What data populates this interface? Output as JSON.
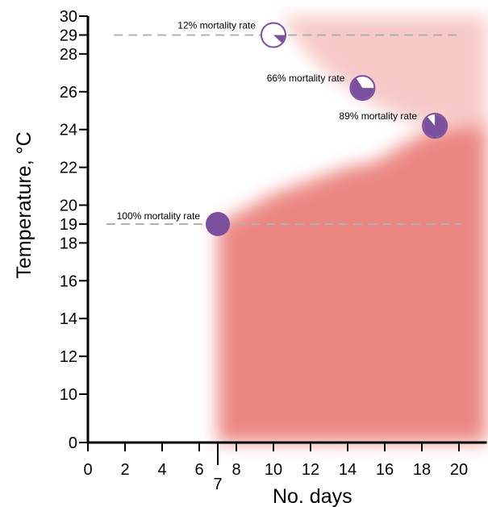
{
  "chart_data": {
    "type": "scatter",
    "xlabel": "No. days",
    "ylabel": "Temperature, °C",
    "xlim": [
      0,
      21.5
    ],
    "x_ticks": [
      {
        "value": 0,
        "label": "0"
      },
      {
        "value": 2,
        "label": "2"
      },
      {
        "value": 4,
        "label": "4"
      },
      {
        "value": 6,
        "label": "6"
      },
      {
        "value": 8,
        "label": "8"
      },
      {
        "value": 10,
        "label": "10"
      },
      {
        "value": 12,
        "label": "12"
      },
      {
        "value": 14,
        "label": "14"
      },
      {
        "value": 16,
        "label": "16"
      },
      {
        "value": 18,
        "label": "18"
      },
      {
        "value": 20,
        "label": "20"
      }
    ],
    "x_extra_tick": {
      "value": 7,
      "label": "7"
    },
    "y_ticks": [
      {
        "value": 0,
        "label": "0"
      },
      {
        "value": 10,
        "label": "10"
      },
      {
        "value": 12,
        "label": "12"
      },
      {
        "value": 14,
        "label": "14"
      },
      {
        "value": 16,
        "label": "16"
      },
      {
        "value": 18,
        "label": "18"
      },
      {
        "value": 19,
        "label": "19"
      },
      {
        "value": 20,
        "label": "20"
      },
      {
        "value": 22,
        "label": "22"
      },
      {
        "value": 24,
        "label": "24"
      },
      {
        "value": 26,
        "label": "26"
      },
      {
        "value": 28,
        "label": "28"
      },
      {
        "value": 29,
        "label": "29"
      },
      {
        "value": 30,
        "label": "30"
      }
    ],
    "reference_lines": [
      {
        "y": 29
      },
      {
        "y": 19
      }
    ],
    "points": [
      {
        "x": 7,
        "y": 19,
        "mortality": 1.0,
        "label": "100% mortality rate"
      },
      {
        "x": 10,
        "y": 29,
        "mortality": 0.12,
        "label": "12% mortality rate"
      },
      {
        "x": 14.8,
        "y": 26.2,
        "mortality": 0.66,
        "label": "66% mortality rate"
      },
      {
        "x": 18.7,
        "y": 24.2,
        "mortality": 0.89,
        "label": "89% mortality rate"
      }
    ],
    "region": {
      "description_color": "#e8736e",
      "boundary": [
        {
          "x": 7,
          "y": 19
        },
        {
          "x": 10,
          "y": 20.6
        },
        {
          "x": 14,
          "y": 22
        },
        {
          "x": 15.5,
          "y": 22.3
        },
        {
          "x": 17,
          "y": 23.2
        },
        {
          "x": 18.5,
          "y": 24
        },
        {
          "x": 20,
          "y": 24.2
        }
      ]
    },
    "colors": {
      "marker": "#7a4f9e",
      "marker_dark": "#6a3f8e",
      "region": "#e8736e",
      "reference_line": "#b0b0b0",
      "axis": "#000000"
    }
  }
}
